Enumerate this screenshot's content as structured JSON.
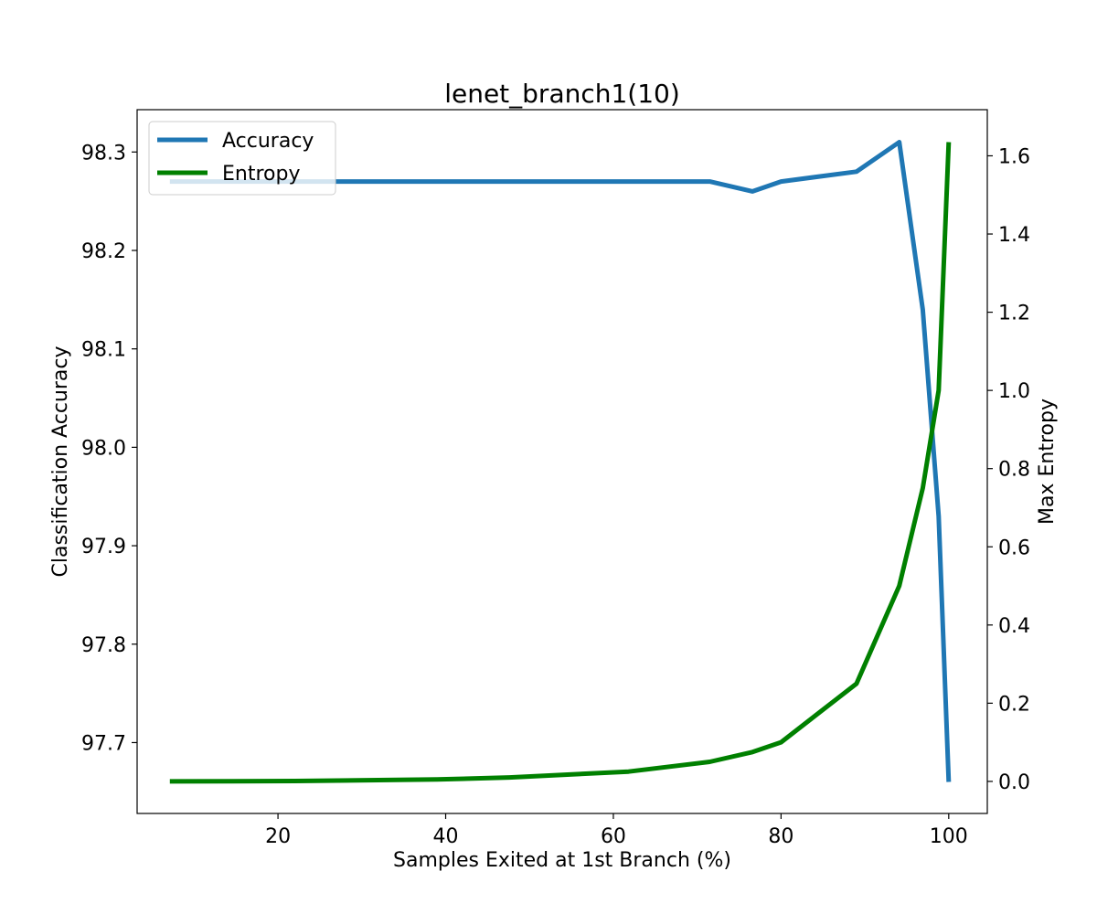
{
  "chart_data": {
    "type": "line",
    "title": "lenet_branch1(10)",
    "xlabel": "Samples Exited at 1st Branch (%)",
    "ylabel": "Classification Accuracy",
    "y2label": "Max Entropy",
    "xlim": [
      3.2,
      104.6
    ],
    "ylim": [
      97.628,
      98.343
    ],
    "y2lim": [
      -0.082,
      1.718
    ],
    "x_ticks": [
      20,
      40,
      60,
      80,
      100
    ],
    "y_ticks": [
      97.7,
      97.8,
      97.9,
      98.0,
      98.1,
      98.2,
      98.3
    ],
    "y2_ticks": [
      0.0,
      0.2,
      0.4,
      0.6,
      0.8,
      1.0,
      1.2,
      1.4,
      1.6
    ],
    "x_tick_labels": [
      "20",
      "40",
      "60",
      "80",
      "100"
    ],
    "y_tick_labels": [
      "97.7",
      "97.8",
      "97.9",
      "98.0",
      "98.1",
      "98.2",
      "98.3"
    ],
    "y2_tick_labels": [
      "0.0",
      "0.2",
      "0.4",
      "0.6",
      "0.8",
      "1.0",
      "1.2",
      "1.4",
      "1.6"
    ],
    "grid": false,
    "legend_position": "top-left",
    "series": [
      {
        "name": "Accuracy",
        "axis": "left",
        "color": "#1f77b4",
        "x": [
          7.1,
          22.0,
          39.0,
          47.6,
          61.8,
          71.5,
          76.6,
          80.0,
          89.0,
          94.1,
          96.9,
          98.8,
          100.0
        ],
        "y": [
          98.27,
          98.27,
          98.27,
          98.27,
          98.27,
          98.27,
          98.26,
          98.27,
          98.28,
          98.31,
          98.14,
          97.93,
          97.66
        ]
      },
      {
        "name": "Entropy",
        "axis": "right",
        "color": "#008000",
        "x": [
          7.1,
          22.0,
          39.0,
          47.6,
          61.8,
          71.5,
          76.6,
          80.0,
          89.0,
          94.1,
          96.9,
          98.8,
          100.0
        ],
        "y": [
          0.0,
          0.001,
          0.005,
          0.01,
          0.025,
          0.05,
          0.075,
          0.1,
          0.25,
          0.5,
          0.75,
          1.0,
          1.635
        ]
      }
    ]
  }
}
